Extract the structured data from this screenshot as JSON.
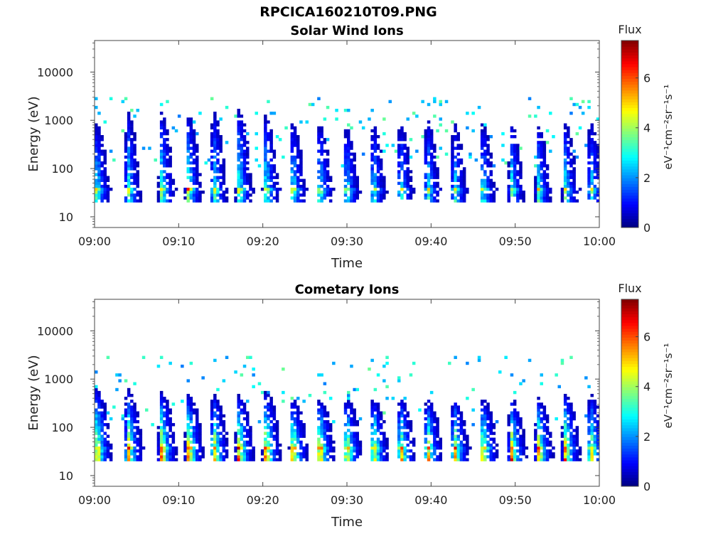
{
  "figure_title": "RPCICA160210T09.PNG",
  "chart_data": [
    {
      "type": "heatmap",
      "title": "Solar Wind Ions",
      "xlabel": "Time",
      "ylabel": "Energy (eV)",
      "x_ticks": [
        "09:00",
        "09:10",
        "09:20",
        "09:30",
        "09:40",
        "09:50",
        "10:00"
      ],
      "x_range_minutes": [
        0,
        60
      ],
      "y_scale": "log",
      "y_ticks": [
        "10",
        "100",
        "1000",
        "10000"
      ],
      "y_range_eV": [
        6,
        45000
      ],
      "colorbar": {
        "label_top": "Flux",
        "label": "eV⁻¹cm⁻²sr⁻¹s⁻¹",
        "ticks": [
          "0",
          "2",
          "4",
          "6"
        ],
        "range": [
          0,
          7.5
        ],
        "colormap": "jet"
      },
      "bursts": [
        {
          "t": 0.3,
          "peak": 5.8,
          "top": 1500
        },
        {
          "t": 4.0,
          "peak": 6.0,
          "top": 2500
        },
        {
          "t": 8.0,
          "peak": 6.2,
          "top": 2500
        },
        {
          "t": 11.2,
          "peak": 6.4,
          "top": 2200
        },
        {
          "t": 14.2,
          "peak": 6.2,
          "top": 2500
        },
        {
          "t": 17.2,
          "peak": 6.3,
          "top": 3000
        },
        {
          "t": 20.4,
          "peak": 6.0,
          "top": 2200
        },
        {
          "t": 23.6,
          "peak": 5.6,
          "top": 1500
        },
        {
          "t": 26.8,
          "peak": 5.6,
          "top": 1500
        },
        {
          "t": 30.0,
          "peak": 5.5,
          "top": 1200
        },
        {
          "t": 33.2,
          "peak": 5.4,
          "top": 1400
        },
        {
          "t": 36.4,
          "peak": 5.4,
          "top": 1500
        },
        {
          "t": 39.6,
          "peak": 5.6,
          "top": 1800
        },
        {
          "t": 42.8,
          "peak": 5.3,
          "top": 1500
        },
        {
          "t": 46.2,
          "peak": 5.3,
          "top": 1500
        },
        {
          "t": 49.6,
          "peak": 5.4,
          "top": 1500
        },
        {
          "t": 52.8,
          "peak": 5.3,
          "top": 1400
        },
        {
          "t": 56.0,
          "peak": 5.4,
          "top": 1500
        },
        {
          "t": 59.0,
          "peak": 5.6,
          "top": 1500
        }
      ],
      "background_intensity": 0.8
    },
    {
      "type": "heatmap",
      "title": "Cometary Ions",
      "xlabel": "Time",
      "ylabel": "Energy (eV)",
      "x_ticks": [
        "09:00",
        "09:10",
        "09:20",
        "09:30",
        "09:40",
        "09:50",
        "10:00"
      ],
      "x_range_minutes": [
        0,
        60
      ],
      "y_scale": "log",
      "y_ticks": [
        "10",
        "100",
        "1000",
        "10000"
      ],
      "y_range_eV": [
        6,
        45000
      ],
      "colorbar": {
        "label_top": "Flux",
        "label": "eV⁻¹cm⁻²sr⁻¹s⁻¹",
        "ticks": [
          "0",
          "2",
          "4",
          "6"
        ],
        "range": [
          0,
          7.5
        ],
        "colormap": "jet"
      },
      "bursts": [
        {
          "t": 0.3,
          "peak": 7.2,
          "top": 900
        },
        {
          "t": 4.0,
          "peak": 7.2,
          "top": 800
        },
        {
          "t": 8.0,
          "peak": 7.3,
          "top": 700
        },
        {
          "t": 11.2,
          "peak": 7.4,
          "top": 600
        },
        {
          "t": 14.2,
          "peak": 7.3,
          "top": 600
        },
        {
          "t": 17.2,
          "peak": 7.4,
          "top": 600
        },
        {
          "t": 20.4,
          "peak": 7.3,
          "top": 700
        },
        {
          "t": 23.6,
          "peak": 7.2,
          "top": 500
        },
        {
          "t": 26.8,
          "peak": 7.2,
          "top": 500
        },
        {
          "t": 30.0,
          "peak": 7.1,
          "top": 500
        },
        {
          "t": 33.2,
          "peak": 7.1,
          "top": 500
        },
        {
          "t": 36.4,
          "peak": 7.1,
          "top": 500
        },
        {
          "t": 39.6,
          "peak": 7.1,
          "top": 500
        },
        {
          "t": 42.8,
          "peak": 7.0,
          "top": 500
        },
        {
          "t": 46.2,
          "peak": 7.0,
          "top": 500
        },
        {
          "t": 49.6,
          "peak": 7.0,
          "top": 500
        },
        {
          "t": 52.8,
          "peak": 7.0,
          "top": 500
        },
        {
          "t": 56.0,
          "peak": 7.1,
          "top": 600
        },
        {
          "t": 59.0,
          "peak": 7.1,
          "top": 600
        }
      ],
      "background_intensity": 0.6
    }
  ]
}
